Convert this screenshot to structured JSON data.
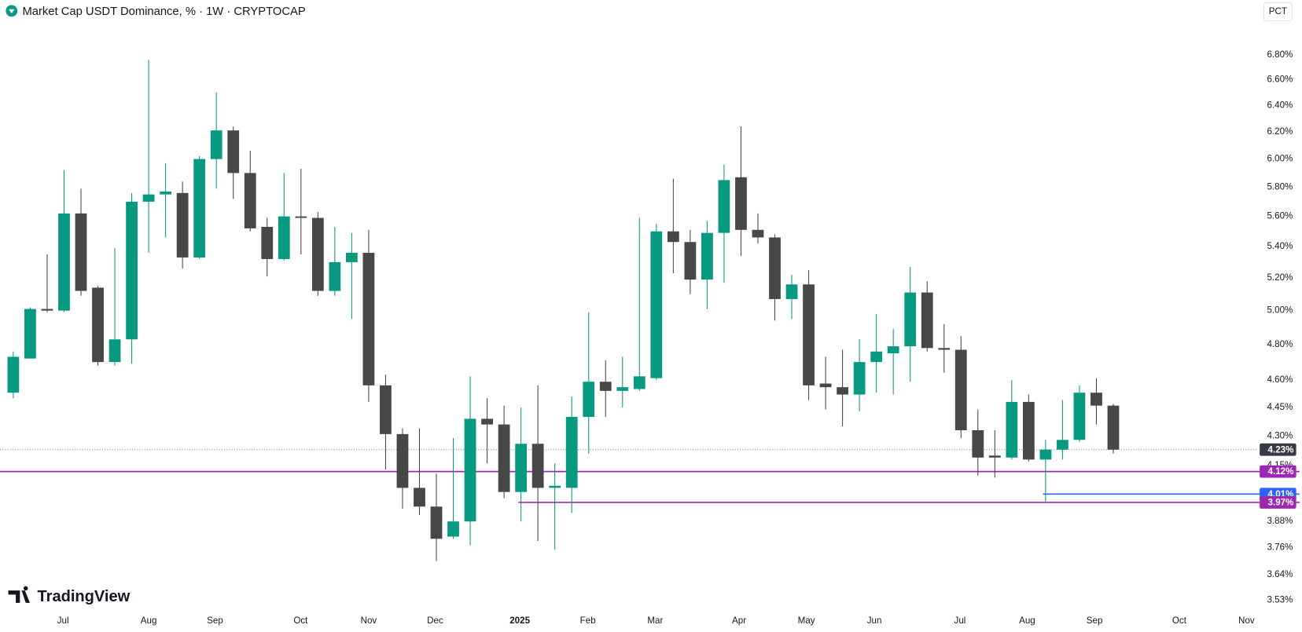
{
  "chart_data": {
    "type": "candlestick",
    "title": "Market Cap USDT Dominance, % · 1W · CRYPTOCAP",
    "scale_button": "PCT",
    "watermark": "TradingView",
    "log_scale": true,
    "grid": false,
    "up_color": "#089981",
    "down_color": "#474747",
    "open": [
      4.53,
      4.72,
      5.01,
      5.0,
      5.62,
      5.14,
      4.7,
      4.83,
      5.7,
      5.75,
      5.76,
      5.33,
      6.0,
      6.21,
      5.9,
      5.53,
      5.32,
      5.6,
      5.59,
      5.12,
      5.3,
      5.36,
      4.57,
      4.31,
      4.04,
      3.95,
      3.81,
      3.88,
      4.39,
      4.36,
      4.02,
      4.26,
      4.04,
      4.04,
      4.4,
      4.59,
      4.54,
      4.55,
      4.61,
      5.5,
      5.43,
      5.19,
      5.49,
      5.87,
      5.51,
      5.46,
      5.07,
      5.16,
      4.58,
      4.56,
      4.52,
      4.7,
      4.75,
      4.79,
      5.11,
      4.78,
      4.77,
      4.33,
      4.2,
      4.19,
      4.48,
      4.18,
      4.23,
      4.28,
      4.53,
      4.46
    ],
    "high": [
      4.76,
      5.02,
      5.35,
      5.92,
      5.79,
      5.15,
      5.39,
      5.76,
      6.76,
      5.97,
      5.84,
      6.02,
      6.5,
      6.24,
      6.06,
      5.59,
      5.9,
      5.93,
      5.63,
      5.53,
      5.49,
      5.51,
      4.63,
      4.34,
      4.34,
      4.11,
      4.29,
      4.62,
      4.5,
      4.46,
      4.45,
      4.57,
      4.16,
      4.51,
      4.99,
      4.71,
      4.73,
      5.59,
      5.55,
      5.86,
      5.51,
      5.57,
      5.96,
      6.24,
      5.62,
      5.48,
      5.22,
      5.25,
      4.73,
      4.77,
      4.83,
      4.98,
      4.89,
      5.27,
      5.18,
      4.92,
      4.85,
      4.44,
      4.33,
      4.6,
      4.52,
      4.28,
      4.49,
      4.57,
      4.61,
      4.47
    ],
    "low": [
      4.5,
      4.72,
      4.99,
      4.99,
      5.09,
      4.68,
      4.68,
      4.69,
      5.36,
      5.46,
      5.26,
      5.32,
      5.79,
      5.72,
      5.5,
      5.21,
      5.31,
      5.35,
      5.09,
      5.09,
      4.95,
      4.48,
      4.13,
      3.94,
      3.91,
      3.7,
      3.8,
      3.77,
      4.16,
      3.99,
      3.88,
      3.79,
      3.75,
      3.92,
      4.21,
      4.4,
      4.45,
      4.54,
      4.6,
      5.23,
      5.1,
      5.01,
      5.17,
      5.34,
      5.42,
      4.94,
      4.95,
      4.49,
      4.44,
      4.35,
      4.43,
      4.53,
      4.52,
      4.59,
      4.76,
      4.64,
      4.29,
      4.1,
      4.09,
      4.18,
      4.17,
      3.97,
      4.18,
      4.27,
      4.36,
      4.21
    ],
    "close": [
      4.73,
      5.01,
      5.0,
      5.62,
      5.12,
      4.7,
      4.83,
      5.7,
      5.75,
      5.77,
      5.33,
      6.0,
      6.21,
      5.9,
      5.52,
      5.32,
      5.6,
      5.59,
      5.12,
      5.3,
      5.36,
      4.57,
      4.31,
      4.04,
      3.95,
      3.8,
      3.88,
      4.39,
      4.36,
      4.02,
      4.26,
      4.04,
      4.05,
      4.4,
      4.59,
      4.54,
      4.56,
      4.62,
      5.5,
      5.43,
      5.19,
      5.49,
      5.85,
      5.51,
      5.46,
      5.07,
      5.16,
      4.57,
      4.56,
      4.52,
      4.7,
      4.76,
      4.79,
      5.11,
      4.78,
      4.77,
      4.33,
      4.19,
      4.19,
      4.48,
      4.18,
      4.23,
      4.28,
      4.53,
      4.46,
      4.23
    ],
    "xlim": [
      -0.785,
      73.55
    ],
    "xticks": [
      {
        "value": 2.94,
        "label": "Jul"
      },
      {
        "value": 8.0,
        "label": "Aug"
      },
      {
        "value": 11.92,
        "label": "Sep"
      },
      {
        "value": 16.98,
        "label": "Oct"
      },
      {
        "value": 21.0,
        "label": "Nov"
      },
      {
        "value": 24.93,
        "label": "Dec"
      },
      {
        "value": 29.93,
        "label": "2025"
      },
      {
        "value": 33.95,
        "label": "Feb"
      },
      {
        "value": 37.93,
        "label": "Mar"
      },
      {
        "value": 42.89,
        "label": "Apr"
      },
      {
        "value": 46.86,
        "label": "May"
      },
      {
        "value": 50.88,
        "label": "Jun"
      },
      {
        "value": 55.94,
        "label": "Jul"
      },
      {
        "value": 59.91,
        "label": "Aug"
      },
      {
        "value": 63.89,
        "label": "Sep"
      },
      {
        "value": 68.9,
        "label": "Oct"
      },
      {
        "value": 72.87,
        "label": "Nov"
      }
    ],
    "ylim": [
      3.49,
      7.05
    ],
    "yticks": [
      {
        "value": 6.8,
        "label": "6.80%"
      },
      {
        "value": 6.6,
        "label": "6.60%"
      },
      {
        "value": 6.4,
        "label": "6.40%"
      },
      {
        "value": 6.2,
        "label": "6.20%"
      },
      {
        "value": 6.0,
        "label": "6.00%"
      },
      {
        "value": 5.8,
        "label": "5.80%"
      },
      {
        "value": 5.6,
        "label": "5.60%"
      },
      {
        "value": 5.4,
        "label": "5.40%"
      },
      {
        "value": 5.2,
        "label": "5.20%"
      },
      {
        "value": 5.0,
        "label": "5.00%"
      },
      {
        "value": 4.8,
        "label": "4.80%"
      },
      {
        "value": 4.6,
        "label": "4.60%"
      },
      {
        "value": 4.45,
        "label": "4.45%"
      },
      {
        "value": 4.3,
        "label": "4.30%"
      },
      {
        "value": 4.15,
        "label": "4.15%"
      },
      {
        "value": 3.88,
        "label": "3.88%"
      },
      {
        "value": 3.76,
        "label": "3.76%"
      },
      {
        "value": 3.64,
        "label": "3.64%"
      },
      {
        "value": 3.53,
        "label": "3.53%"
      }
    ],
    "levels": [
      {
        "value": 4.12,
        "label": "4.12%",
        "color": "#9c27b0"
      },
      {
        "value": 4.01,
        "label": "4.01%",
        "color": "#2962ff",
        "from": 61
      },
      {
        "value": 3.97,
        "label": "3.97%",
        "color": "#9c27b0",
        "from": 30
      }
    ],
    "last_price": {
      "value": 4.23,
      "label": "4.23%",
      "color": "#363a45"
    }
  }
}
